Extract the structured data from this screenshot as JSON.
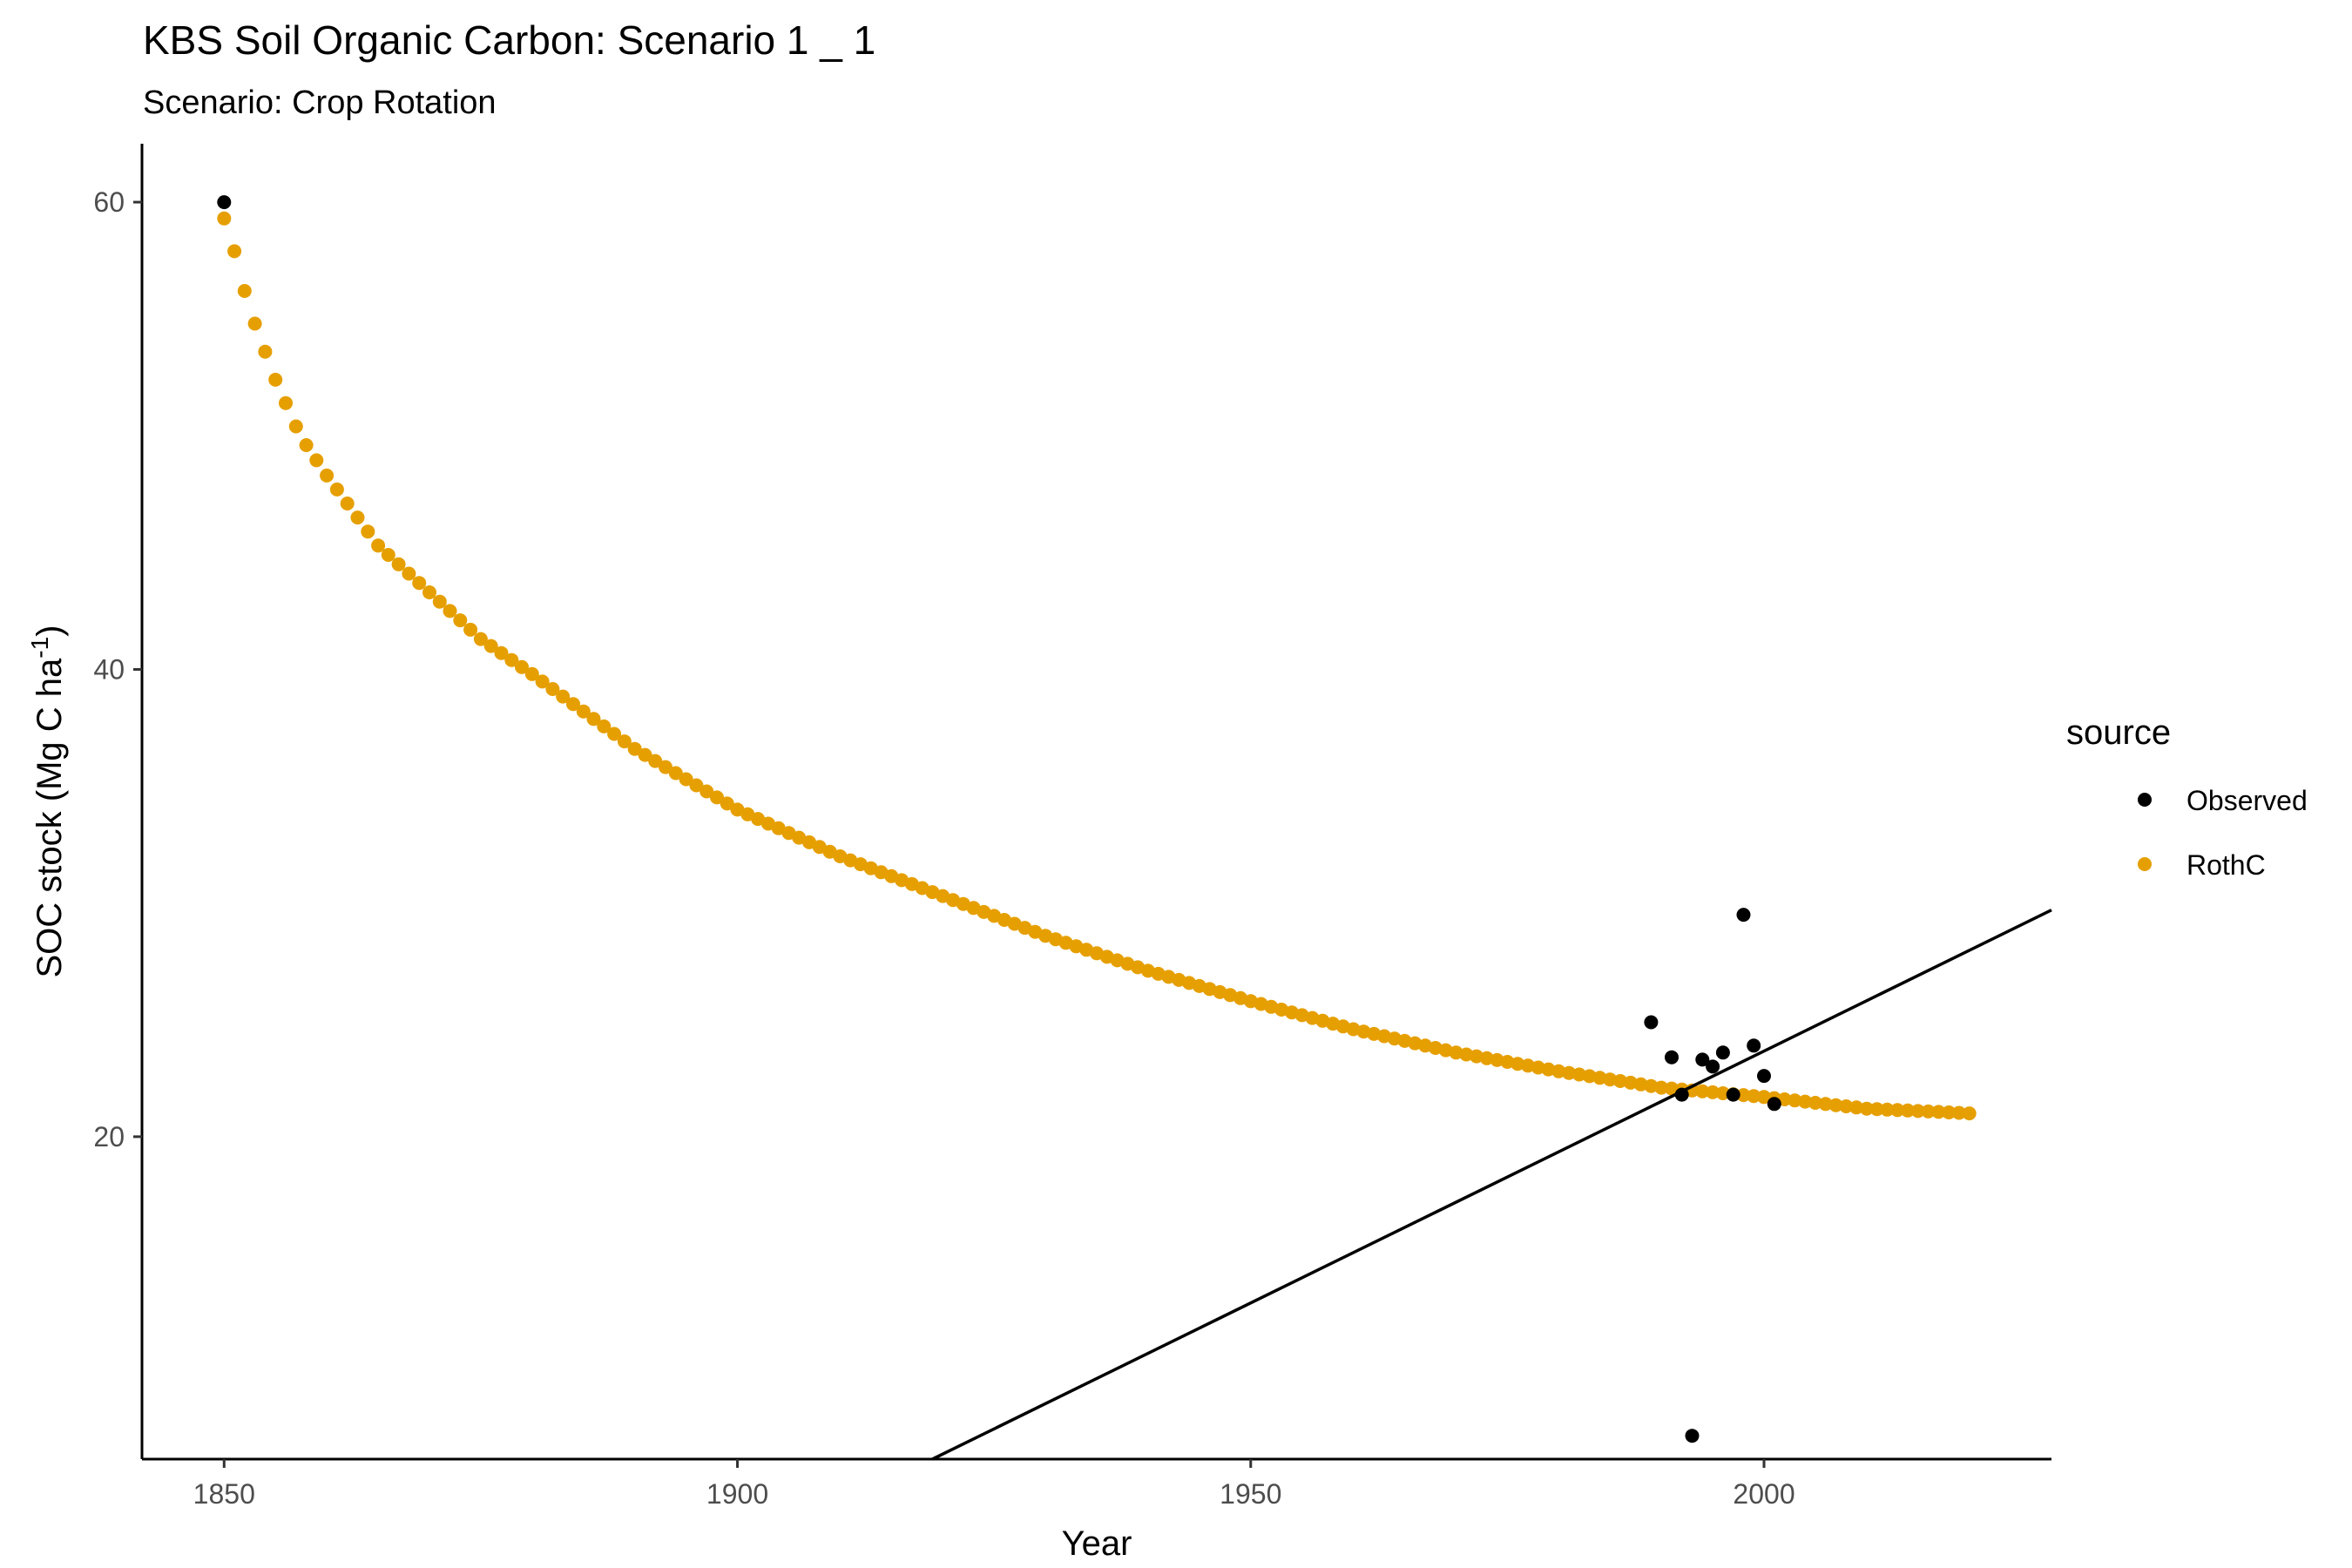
{
  "chart_data": {
    "type": "scatter",
    "title": "KBS Soil Organic Carbon: Scenario  1 _ 1",
    "subtitle": "Scenario: Crop Rotation",
    "xlabel": "Year",
    "ylabel": {
      "main": "SOC stock (Mg C ha",
      "superscript": "-1",
      "close": ")"
    },
    "xlim": [
      1842,
      2028
    ],
    "ylim": [
      6.2,
      62.5
    ],
    "x_ticks": [
      1850,
      1900,
      1950,
      2000
    ],
    "y_ticks": [
      20,
      40,
      60
    ],
    "grid": false,
    "legend": {
      "title": "source",
      "position": "right",
      "entries": [
        {
          "label": "Observed",
          "color": "#000000"
        },
        {
          "label": "RothC",
          "color": "#E69F00"
        }
      ]
    },
    "series": [
      {
        "name": "Observed",
        "color": "#000000",
        "points": [
          [
            1850,
            60.0
          ],
          [
            1989,
            24.9
          ],
          [
            1991,
            23.4
          ],
          [
            1992,
            21.8
          ],
          [
            1993,
            7.2
          ],
          [
            1994,
            23.3
          ],
          [
            1995,
            23.0
          ],
          [
            1996,
            23.6
          ],
          [
            1997,
            21.8
          ],
          [
            1998,
            29.5
          ],
          [
            1999,
            23.9
          ],
          [
            2000,
            22.6
          ],
          [
            2001,
            21.4
          ]
        ]
      },
      {
        "name": "RothC",
        "color": "#E69F00",
        "anchors": [
          [
            1850,
            59.3
          ],
          [
            1851,
            57.9
          ],
          [
            1852,
            56.2
          ],
          [
            1853,
            54.8
          ],
          [
            1854,
            53.6
          ],
          [
            1855,
            52.4
          ],
          [
            1856,
            51.4
          ],
          [
            1857,
            50.4
          ],
          [
            1858,
            49.6
          ],
          [
            1860,
            48.3
          ],
          [
            1865,
            45.3
          ],
          [
            1870,
            43.3
          ],
          [
            1875,
            41.3
          ],
          [
            1880,
            39.8
          ],
          [
            1885,
            38.2
          ],
          [
            1890,
            36.6
          ],
          [
            1895,
            35.3
          ],
          [
            1900,
            34.0
          ],
          [
            1905,
            33.0
          ],
          [
            1910,
            32.0
          ],
          [
            1920,
            30.3
          ],
          [
            1930,
            28.6
          ],
          [
            1940,
            27.1
          ],
          [
            1950,
            25.8
          ],
          [
            1960,
            24.6
          ],
          [
            1970,
            23.6
          ],
          [
            1980,
            22.8
          ],
          [
            1990,
            22.1
          ],
          [
            2000,
            21.7
          ],
          [
            2010,
            21.2
          ],
          [
            2020,
            21.0
          ]
        ]
      }
    ],
    "reference_line": {
      "color": "#000000",
      "from": [
        1919,
        6.2
      ],
      "to": [
        2028,
        29.7
      ]
    }
  }
}
